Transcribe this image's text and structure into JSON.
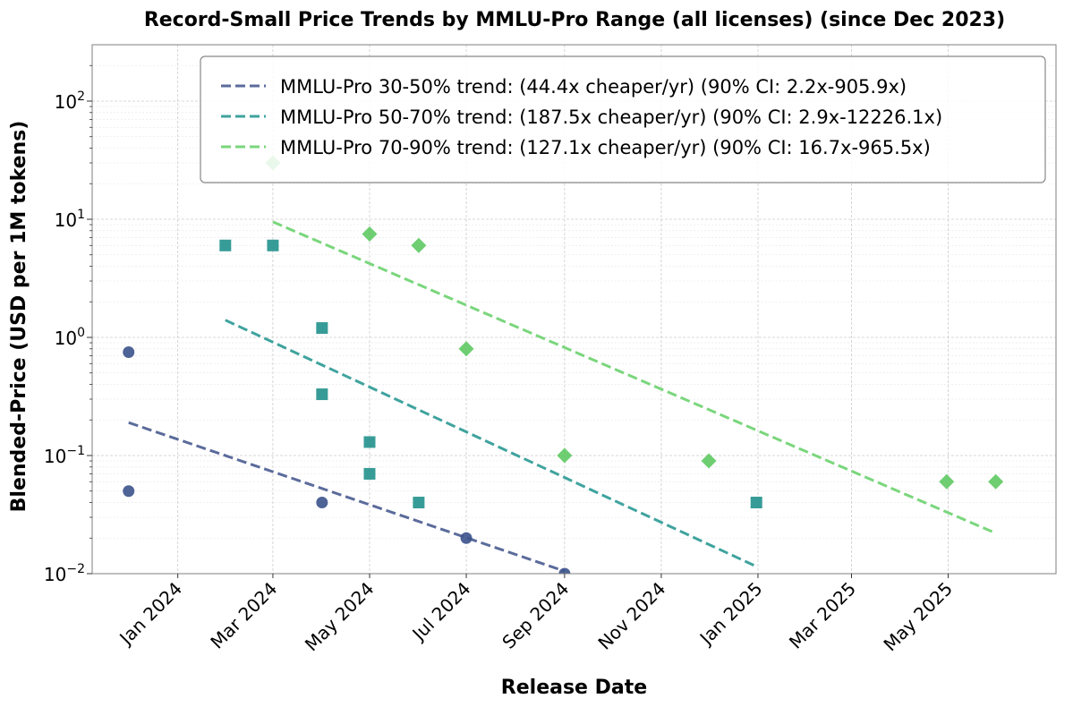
{
  "chart_data": {
    "type": "scatter",
    "title": "Record-Small Price Trends by MMLU-Pro Range (all licenses) (since Dec 2023)",
    "xlabel": "Release Date",
    "ylabel": "Blended-Price (USD per 1M tokens)",
    "y_scale": "log",
    "ylim": [
      0.01,
      300
    ],
    "xlim": [
      "2023-11-08",
      "2025-07-08"
    ],
    "grid": true,
    "legend_position": "top-right",
    "x_ticks": [
      {
        "date": "2024-01-01",
        "label": "Jan 2024"
      },
      {
        "date": "2024-03-01",
        "label": "Mar 2024"
      },
      {
        "date": "2024-05-01",
        "label": "May 2024"
      },
      {
        "date": "2024-07-01",
        "label": "Jul 2024"
      },
      {
        "date": "2024-09-01",
        "label": "Sep 2024"
      },
      {
        "date": "2024-11-01",
        "label": "Nov 2024"
      },
      {
        "date": "2025-01-01",
        "label": "Jan 2025"
      },
      {
        "date": "2025-03-01",
        "label": "Mar 2025"
      },
      {
        "date": "2025-05-01",
        "label": "May 2025"
      }
    ],
    "y_ticks": [
      {
        "value": 0.01,
        "base": "10",
        "exp": "−2"
      },
      {
        "value": 0.1,
        "base": "10",
        "exp": "−1"
      },
      {
        "value": 1,
        "base": "10",
        "exp": "0"
      },
      {
        "value": 10,
        "base": "10",
        "exp": "1"
      },
      {
        "value": 100,
        "base": "10",
        "exp": "2"
      }
    ],
    "series": [
      {
        "name": "MMLU-Pro 30-50%",
        "marker": "circle",
        "color": "#3b528b",
        "trend_color": "#5b6b9b",
        "points": [
          {
            "x": "2023-12-01",
            "y": 0.75
          },
          {
            "x": "2023-12-01",
            "y": 0.05
          },
          {
            "x": "2024-04-01",
            "y": 0.04
          },
          {
            "x": "2024-07-01",
            "y": 0.02
          },
          {
            "x": "2024-09-01",
            "y": 0.01
          }
        ],
        "trend": {
          "label": "MMLU-Pro 30-50% trend: (44.4x cheaper/yr) (90% CI: 2.2x-905.9x)",
          "start": {
            "x": "2023-12-01",
            "y": 0.19
          },
          "end": {
            "x": "2024-09-01",
            "y": 0.0105
          }
        }
      },
      {
        "name": "MMLU-Pro 50-70%",
        "marker": "square",
        "color": "#21918c",
        "trend_color": "#3fa39e",
        "points": [
          {
            "x": "2024-01-31",
            "y": 6
          },
          {
            "x": "2024-03-01",
            "y": 6
          },
          {
            "x": "2024-04-01",
            "y": 1.2
          },
          {
            "x": "2024-04-01",
            "y": 0.33
          },
          {
            "x": "2024-05-01",
            "y": 0.13
          },
          {
            "x": "2024-05-01",
            "y": 0.07
          },
          {
            "x": "2024-06-01",
            "y": 0.04
          },
          {
            "x": "2024-12-31",
            "y": 0.04
          }
        ],
        "trend": {
          "label": "MMLU-Pro 50-70% trend: (187.5x cheaper/yr) (90% CI: 2.9x-12226.1x)",
          "start": {
            "x": "2024-01-31",
            "y": 1.4
          },
          "end": {
            "x": "2024-12-31",
            "y": 0.0115
          }
        }
      },
      {
        "name": "MMLU-Pro 70-90%",
        "marker": "diamond",
        "color": "#5ec962",
        "trend_color": "#7ad67c",
        "points": [
          {
            "x": "2024-03-01",
            "y": 30
          },
          {
            "x": "2024-05-01",
            "y": 7.5
          },
          {
            "x": "2024-06-01",
            "y": 6
          },
          {
            "x": "2024-07-01",
            "y": 0.8
          },
          {
            "x": "2024-09-01",
            "y": 0.1
          },
          {
            "x": "2024-12-01",
            "y": 0.09
          },
          {
            "x": "2025-04-30",
            "y": 0.06
          },
          {
            "x": "2025-05-31",
            "y": 0.06
          }
        ],
        "trend": {
          "label": "MMLU-Pro 70-90% trend: (127.1x cheaper/yr) (90% CI: 16.7x-965.5x)",
          "start": {
            "x": "2024-03-01",
            "y": 9.5
          },
          "end": {
            "x": "2025-05-31",
            "y": 0.022
          }
        }
      }
    ]
  }
}
